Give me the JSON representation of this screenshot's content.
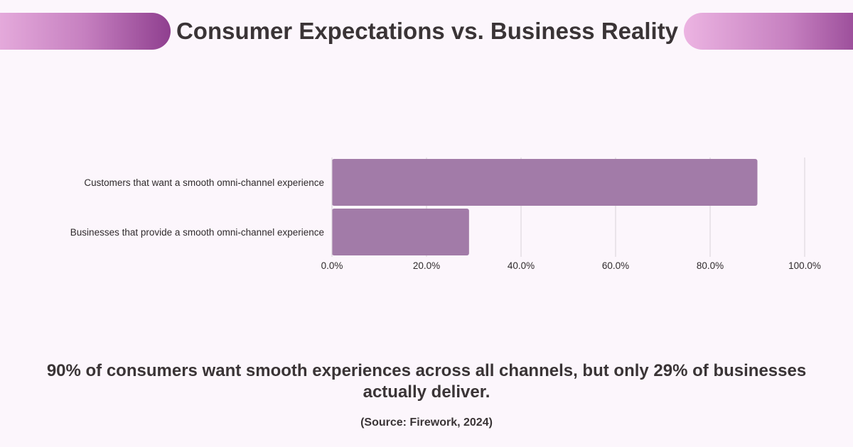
{
  "title": "Consumer Expectations vs. Business Reality",
  "summary": "90% of consumers want smooth experiences across all channels, but only 29% of businesses actually deliver.",
  "source": "(Source: Firework, 2024)",
  "colors": {
    "bar": "#a27ba8",
    "grid": "#d9d2d9",
    "background": "#fcf6fc"
  },
  "chart_data": {
    "type": "bar",
    "orientation": "horizontal",
    "categories": [
      "Customers that want a smooth omni-channel experience",
      "Businesses that provide a smooth omni-channel experience"
    ],
    "values": [
      90,
      29
    ],
    "xlim": [
      0,
      100
    ],
    "xticks": [
      "0.0%",
      "20.0%",
      "40.0%",
      "60.0%",
      "80.0%",
      "100.0%"
    ],
    "grid": "vertical",
    "legend": "none"
  }
}
